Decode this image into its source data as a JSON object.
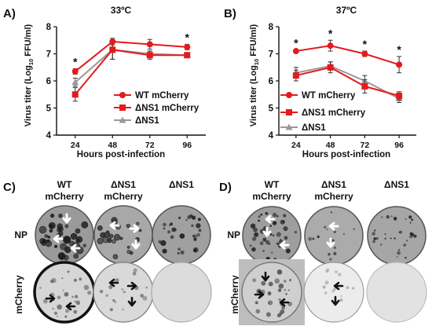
{
  "panels": {
    "A": {
      "letter": "A)",
      "title": "33ºC",
      "xlabel": "Hours post-infection",
      "ylabel_main": "Virus titer (Log",
      "ylabel_sub": "10",
      "ylabel_end": " FFU/ml)",
      "legend": [
        "WT mCherry",
        "ΔNS1 mCherry",
        "ΔNS1"
      ],
      "star": "*"
    },
    "B": {
      "letter": "B)",
      "title": "37ºC",
      "xlabel": "Hours post-infection",
      "ylabel_main": "Virus titer (Log",
      "ylabel_sub": "10",
      "ylabel_end": " FFU/ml)",
      "legend": [
        "WT mCherry",
        "ΔNS1 mCherry",
        "ΔNS1"
      ],
      "star": "*"
    },
    "C": {
      "letter": "C)",
      "columns": [
        [
          "WT",
          "mCherry"
        ],
        [
          "ΔNS1",
          "mCherry"
        ],
        [
          "ΔNS1",
          ""
        ]
      ],
      "rows": [
        "NP",
        "mCherry"
      ]
    },
    "D": {
      "letter": "D)",
      "columns": [
        [
          "WT",
          "mCherry"
        ],
        [
          "ΔNS1",
          "mCherry"
        ],
        [
          "ΔNS1",
          ""
        ]
      ],
      "rows": [
        "NP",
        "mCherry"
      ]
    }
  },
  "colors": {
    "wt": "#e41a1c",
    "dns1_mcherry": "#e41a1c",
    "dns1": "#999999",
    "axis": "#111111"
  },
  "chart_data": [
    {
      "type": "line",
      "title": "33ºC",
      "xlabel": "Hours post-infection",
      "ylabel": "Virus titer (Log10 FFU/ml)",
      "categories": [
        "24",
        "48",
        "72",
        "96"
      ],
      "ylim": [
        4,
        8
      ],
      "yticks": [
        4,
        5,
        6,
        7,
        8
      ],
      "legend_position": "right",
      "significance": [
        "24",
        "96"
      ],
      "series": [
        {
          "name": "WT mCherry",
          "marker": "circle",
          "color": "#e41a1c",
          "values": [
            6.35,
            7.45,
            7.35,
            7.25
          ],
          "errors": [
            0.1,
            0.12,
            0.18,
            0.1
          ]
        },
        {
          "name": "ΔNS1 mCherry",
          "marker": "square",
          "color": "#e41a1c",
          "values": [
            5.5,
            7.15,
            6.95,
            6.95
          ],
          "errors": [
            0.25,
            0.35,
            0.15,
            0.05
          ]
        },
        {
          "name": "ΔNS1",
          "marker": "triangle",
          "color": "#999999",
          "values": [
            5.95,
            7.15,
            7.0,
            6.95
          ],
          "errors": [
            0.15,
            0.35,
            0.1,
            0.05
          ]
        }
      ]
    },
    {
      "type": "line",
      "title": "37ºC",
      "xlabel": "Hours post-infection",
      "ylabel": "Virus titer (Log10 FFU/ml)",
      "categories": [
        "24",
        "48",
        "72",
        "96"
      ],
      "ylim": [
        4,
        8
      ],
      "yticks": [
        4,
        5,
        6,
        7,
        8
      ],
      "legend_position": "bottom-left",
      "significance": [
        "24",
        "48",
        "72",
        "96"
      ],
      "series": [
        {
          "name": "WT mCherry",
          "marker": "circle",
          "color": "#e41a1c",
          "values": [
            7.1,
            7.3,
            7.0,
            6.6
          ],
          "errors": [
            0.05,
            0.2,
            0.1,
            0.3
          ]
        },
        {
          "name": "ΔNS1 mCherry",
          "marker": "square",
          "color": "#e41a1c",
          "values": [
            6.2,
            6.5,
            5.8,
            5.45
          ],
          "errors": [
            0.2,
            0.2,
            0.25,
            0.15
          ]
        },
        {
          "name": "ΔNS1",
          "marker": "triangle",
          "color": "#999999",
          "values": [
            6.3,
            6.55,
            6.0,
            5.35
          ],
          "errors": [
            0.2,
            0.15,
            0.2,
            0.15
          ]
        }
      ]
    }
  ]
}
